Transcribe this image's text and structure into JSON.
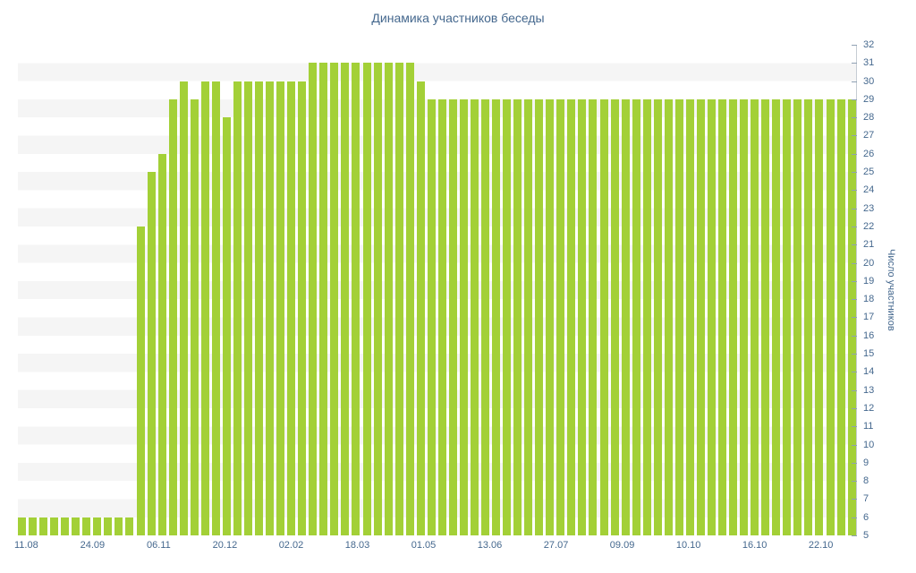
{
  "chart": {
    "title": "Динамика участников беседы",
    "y_axis_title": "Число участников",
    "colors": {
      "bar": "#a3d037",
      "stripe": "#f5f5f5",
      "text": "#45688e",
      "axis_line": "#c6cdd4"
    }
  },
  "chart_data": {
    "type": "bar",
    "title": "Динамика участников беседы",
    "xlabel": "",
    "ylabel": "Число участников",
    "ylim": [
      5,
      32
    ],
    "grid": "horizontal-stripes",
    "legend": "none",
    "y_ticks": [
      5,
      6,
      7,
      8,
      9,
      10,
      11,
      12,
      13,
      14,
      15,
      16,
      17,
      18,
      19,
      20,
      21,
      22,
      23,
      24,
      25,
      26,
      27,
      28,
      29,
      30,
      31,
      32
    ],
    "x_labels": [
      "11.08",
      "24.09",
      "06.11",
      "20.12",
      "02.02",
      "18.03",
      "01.05",
      "13.06",
      "27.07",
      "09.09",
      "10.10",
      "16.10",
      "22.10"
    ],
    "values": [
      6,
      6,
      6,
      6,
      6,
      6,
      6,
      6,
      6,
      6,
      6,
      22,
      25,
      26,
      29,
      30,
      29,
      30,
      30,
      28,
      30,
      30,
      30,
      30,
      30,
      30,
      30,
      31,
      31,
      31,
      31,
      31,
      31,
      31,
      31,
      31,
      31,
      30,
      29,
      29,
      29,
      29,
      29,
      29,
      29,
      29,
      29,
      29,
      29,
      29,
      29,
      29,
      29,
      29,
      29,
      29,
      29,
      29,
      29,
      29,
      29,
      29,
      29,
      29,
      29,
      29,
      29,
      29,
      29,
      29,
      29,
      29,
      29,
      29,
      29,
      29,
      29,
      29
    ]
  }
}
